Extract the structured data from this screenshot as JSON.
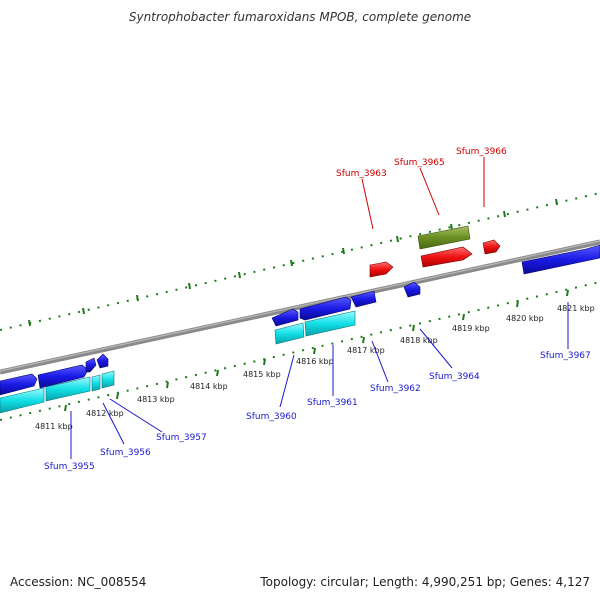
{
  "header": {
    "title": "Syntrophobacter fumaroxidans MPOB, complete genome"
  },
  "footer": {
    "accession": "Accession: NC_008554",
    "topology": "Topology: circular; Length: 4,990,251 bp; Genes: 4,127"
  },
  "ruler": {
    "labels": [
      "4811 kbp",
      "4812 kbp",
      "4813 kbp",
      "4814 kbp",
      "4815 kbp",
      "4816 kbp",
      "4817 kbp",
      "4818 kbp",
      "4819 kbp",
      "4820 kbp",
      "4821 kbp"
    ]
  },
  "genes": {
    "Sfum_3955": "Sfum_3955",
    "Sfum_3956": "Sfum_3956",
    "Sfum_3957": "Sfum_3957",
    "Sfum_3960": "Sfum_3960",
    "Sfum_3961": "Sfum_3961",
    "Sfum_3962": "Sfum_3962",
    "Sfum_3963": "Sfum_3963",
    "Sfum_3964": "Sfum_3964",
    "Sfum_3965": "Sfum_3965",
    "Sfum_3966": "Sfum_3966",
    "Sfum_3967": "Sfum_3967"
  },
  "colors": {
    "backbone": "#7a7a7a",
    "tick": "#1e7a1e",
    "cds_forward": "#1a1ae6",
    "rna": "#11e0e6",
    "highlight_red": "#ee1111",
    "highlight_olive": "#6b8e23",
    "label_blue": "#1a1acc",
    "label_red": "#cc0000"
  }
}
